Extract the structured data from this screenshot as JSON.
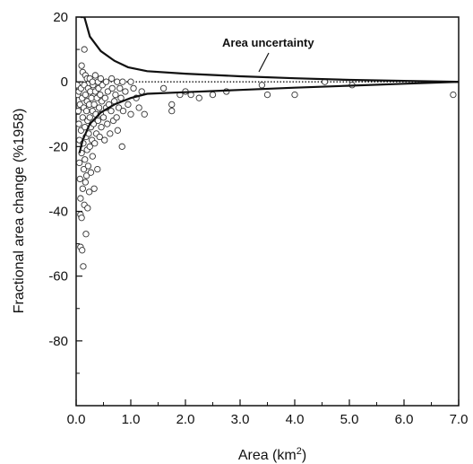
{
  "chart_data": {
    "type": "scatter",
    "title": "",
    "xlabel": "Area (km",
    "xlabel_sup": "2",
    "xlabel_close": ")",
    "ylabel": "Fractional area change (%1958)",
    "xlim": [
      0,
      7
    ],
    "ylim": [
      -100,
      20
    ],
    "x_ticks": [
      0,
      1,
      2,
      3,
      4,
      5,
      6,
      7
    ],
    "x_tick_labels": [
      "0.0",
      "1.0",
      "2.0",
      "3.0",
      "4.0",
      "5.0",
      "6.0",
      "7.0"
    ],
    "y_ticks": [
      20,
      0,
      -20,
      -40,
      -60,
      -80
    ],
    "y_tick_labels": [
      "20",
      "0",
      "-20",
      "-40",
      "-60",
      "-80"
    ],
    "y_minor_ticks": [
      10,
      -10,
      -30,
      -50,
      -70,
      -90
    ],
    "x_minor_ticks": [
      0.5,
      1.5,
      2.5,
      3.5,
      4.5,
      5.5,
      6.5
    ],
    "grid": false,
    "legend": "none",
    "reference_line": {
      "y": 0,
      "style": "dotted"
    },
    "annotation": {
      "text": "Area uncertainty",
      "x": 3.55,
      "y": 6.5,
      "arrow_to": [
        3.3,
        1.9
      ]
    },
    "uncertainty_upper": [
      [
        0.08,
        20
      ],
      [
        0.15,
        20
      ],
      [
        0.25,
        14
      ],
      [
        0.45,
        9.5
      ],
      [
        0.7,
        6.5
      ],
      [
        0.95,
        4.5
      ],
      [
        1.3,
        3.3
      ],
      [
        2.0,
        2.5
      ],
      [
        3.0,
        1.7
      ],
      [
        4.0,
        1.1
      ],
      [
        5.0,
        0.6
      ],
      [
        6.0,
        0.3
      ],
      [
        7.0,
        0
      ]
    ],
    "uncertainty_lower": [
      [
        0.06,
        -22
      ],
      [
        0.12,
        -18
      ],
      [
        0.25,
        -13
      ],
      [
        0.45,
        -9.5
      ],
      [
        0.7,
        -7
      ],
      [
        1.0,
        -5
      ],
      [
        1.3,
        -3.7
      ],
      [
        2.0,
        -3.2
      ],
      [
        3.0,
        -2.5
      ],
      [
        4.0,
        -1.8
      ],
      [
        5.0,
        -1.2
      ],
      [
        6.0,
        -0.6
      ],
      [
        7.0,
        0
      ]
    ],
    "series": [
      {
        "points": [
          [
            0.02,
            -1
          ],
          [
            0.03,
            -4
          ],
          [
            0.04,
            -9
          ],
          [
            0.05,
            -13
          ],
          [
            0.05,
            -3
          ],
          [
            0.06,
            -18
          ],
          [
            0.06,
            -25
          ],
          [
            0.07,
            -7
          ],
          [
            0.07,
            -30
          ],
          [
            0.08,
            -36
          ],
          [
            0.08,
            -41
          ],
          [
            0.08,
            -51
          ],
          [
            0.09,
            -2
          ],
          [
            0.09,
            -15
          ],
          [
            0.1,
            -22
          ],
          [
            0.1,
            -42
          ],
          [
            0.11,
            -52
          ],
          [
            0.11,
            -5
          ],
          [
            0.12,
            -11
          ],
          [
            0.12,
            -33
          ],
          [
            0.13,
            -57
          ],
          [
            0.13,
            -19
          ],
          [
            0.14,
            -27
          ],
          [
            0.14,
            -8
          ],
          [
            0.15,
            -38
          ],
          [
            0.15,
            -1
          ],
          [
            0.16,
            -14
          ],
          [
            0.16,
            -24
          ],
          [
            0.17,
            -31
          ],
          [
            0.17,
            -4
          ],
          [
            0.18,
            -47
          ],
          [
            0.18,
            -17
          ],
          [
            0.19,
            -9
          ],
          [
            0.19,
            -29
          ],
          [
            0.2,
            -6
          ],
          [
            0.2,
            -21
          ],
          [
            0.21,
            -39
          ],
          [
            0.21,
            -12
          ],
          [
            0.22,
            -26
          ],
          [
            0.22,
            -2
          ],
          [
            0.23,
            -16
          ],
          [
            0.24,
            -34
          ],
          [
            0.24,
            -7
          ],
          [
            0.25,
            -20
          ],
          [
            0.25,
            -11
          ],
          [
            0.26,
            -3
          ],
          [
            0.27,
            -28
          ],
          [
            0.27,
            -14
          ],
          [
            0.28,
            -5
          ],
          [
            0.29,
            -18
          ],
          [
            0.3,
            -9
          ],
          [
            0.3,
            -23
          ],
          [
            0.31,
            -1
          ],
          [
            0.32,
            -13
          ],
          [
            0.33,
            -7
          ],
          [
            0.33,
            -33
          ],
          [
            0.34,
            -19
          ],
          [
            0.35,
            -3
          ],
          [
            0.36,
            -10
          ],
          [
            0.37,
            -16
          ],
          [
            0.38,
            -5
          ],
          [
            0.39,
            -27
          ],
          [
            0.4,
            -12
          ],
          [
            0.41,
            -2
          ],
          [
            0.42,
            -8
          ],
          [
            0.43,
            -17
          ],
          [
            0.44,
            -4
          ],
          [
            0.45,
            -10
          ],
          [
            0.46,
            -14
          ],
          [
            0.47,
            -6
          ],
          [
            0.48,
            -1
          ],
          [
            0.5,
            -11
          ],
          [
            0.52,
            -18
          ],
          [
            0.53,
            -5
          ],
          [
            0.55,
            -8
          ],
          [
            0.57,
            -13
          ],
          [
            0.58,
            -3
          ],
          [
            0.6,
            -7
          ],
          [
            0.62,
            -16
          ],
          [
            0.64,
            -9
          ],
          [
            0.66,
            -2
          ],
          [
            0.68,
            -12
          ],
          [
            0.7,
            -6
          ],
          [
            0.72,
            -4
          ],
          [
            0.74,
            -11
          ],
          [
            0.76,
            -15
          ],
          [
            0.78,
            -8
          ],
          [
            0.8,
            -2
          ],
          [
            0.82,
            -5
          ],
          [
            0.84,
            -20
          ],
          [
            0.86,
            -9
          ],
          [
            0.9,
            -3
          ],
          [
            0.95,
            -7
          ],
          [
            1.0,
            -10
          ],
          [
            1.05,
            -2
          ],
          [
            1.1,
            -5
          ],
          [
            1.15,
            -8
          ],
          [
            1.2,
            -3
          ],
          [
            1.25,
            -10
          ],
          [
            1.6,
            -2
          ],
          [
            1.75,
            -7
          ],
          [
            1.75,
            -9
          ],
          [
            1.9,
            -4
          ],
          [
            2.0,
            -3
          ],
          [
            2.1,
            -4
          ],
          [
            2.25,
            -5
          ],
          [
            2.5,
            -4
          ],
          [
            2.75,
            -3
          ],
          [
            3.4,
            -1
          ],
          [
            3.5,
            -4
          ],
          [
            4.0,
            -4
          ],
          [
            4.55,
            0
          ],
          [
            5.05,
            -1
          ],
          [
            6.9,
            -4
          ],
          [
            0.1,
            5
          ],
          [
            0.12,
            3
          ],
          [
            0.15,
            10
          ],
          [
            0.17,
            2
          ],
          [
            0.2,
            1
          ],
          [
            0.25,
            1
          ],
          [
            0.3,
            0
          ],
          [
            0.35,
            2
          ],
          [
            0.4,
            0
          ],
          [
            0.45,
            1
          ],
          [
            0.55,
            0
          ],
          [
            0.65,
            1
          ],
          [
            0.75,
            0
          ],
          [
            0.85,
            0
          ],
          [
            1.0,
            0
          ]
        ]
      }
    ]
  }
}
